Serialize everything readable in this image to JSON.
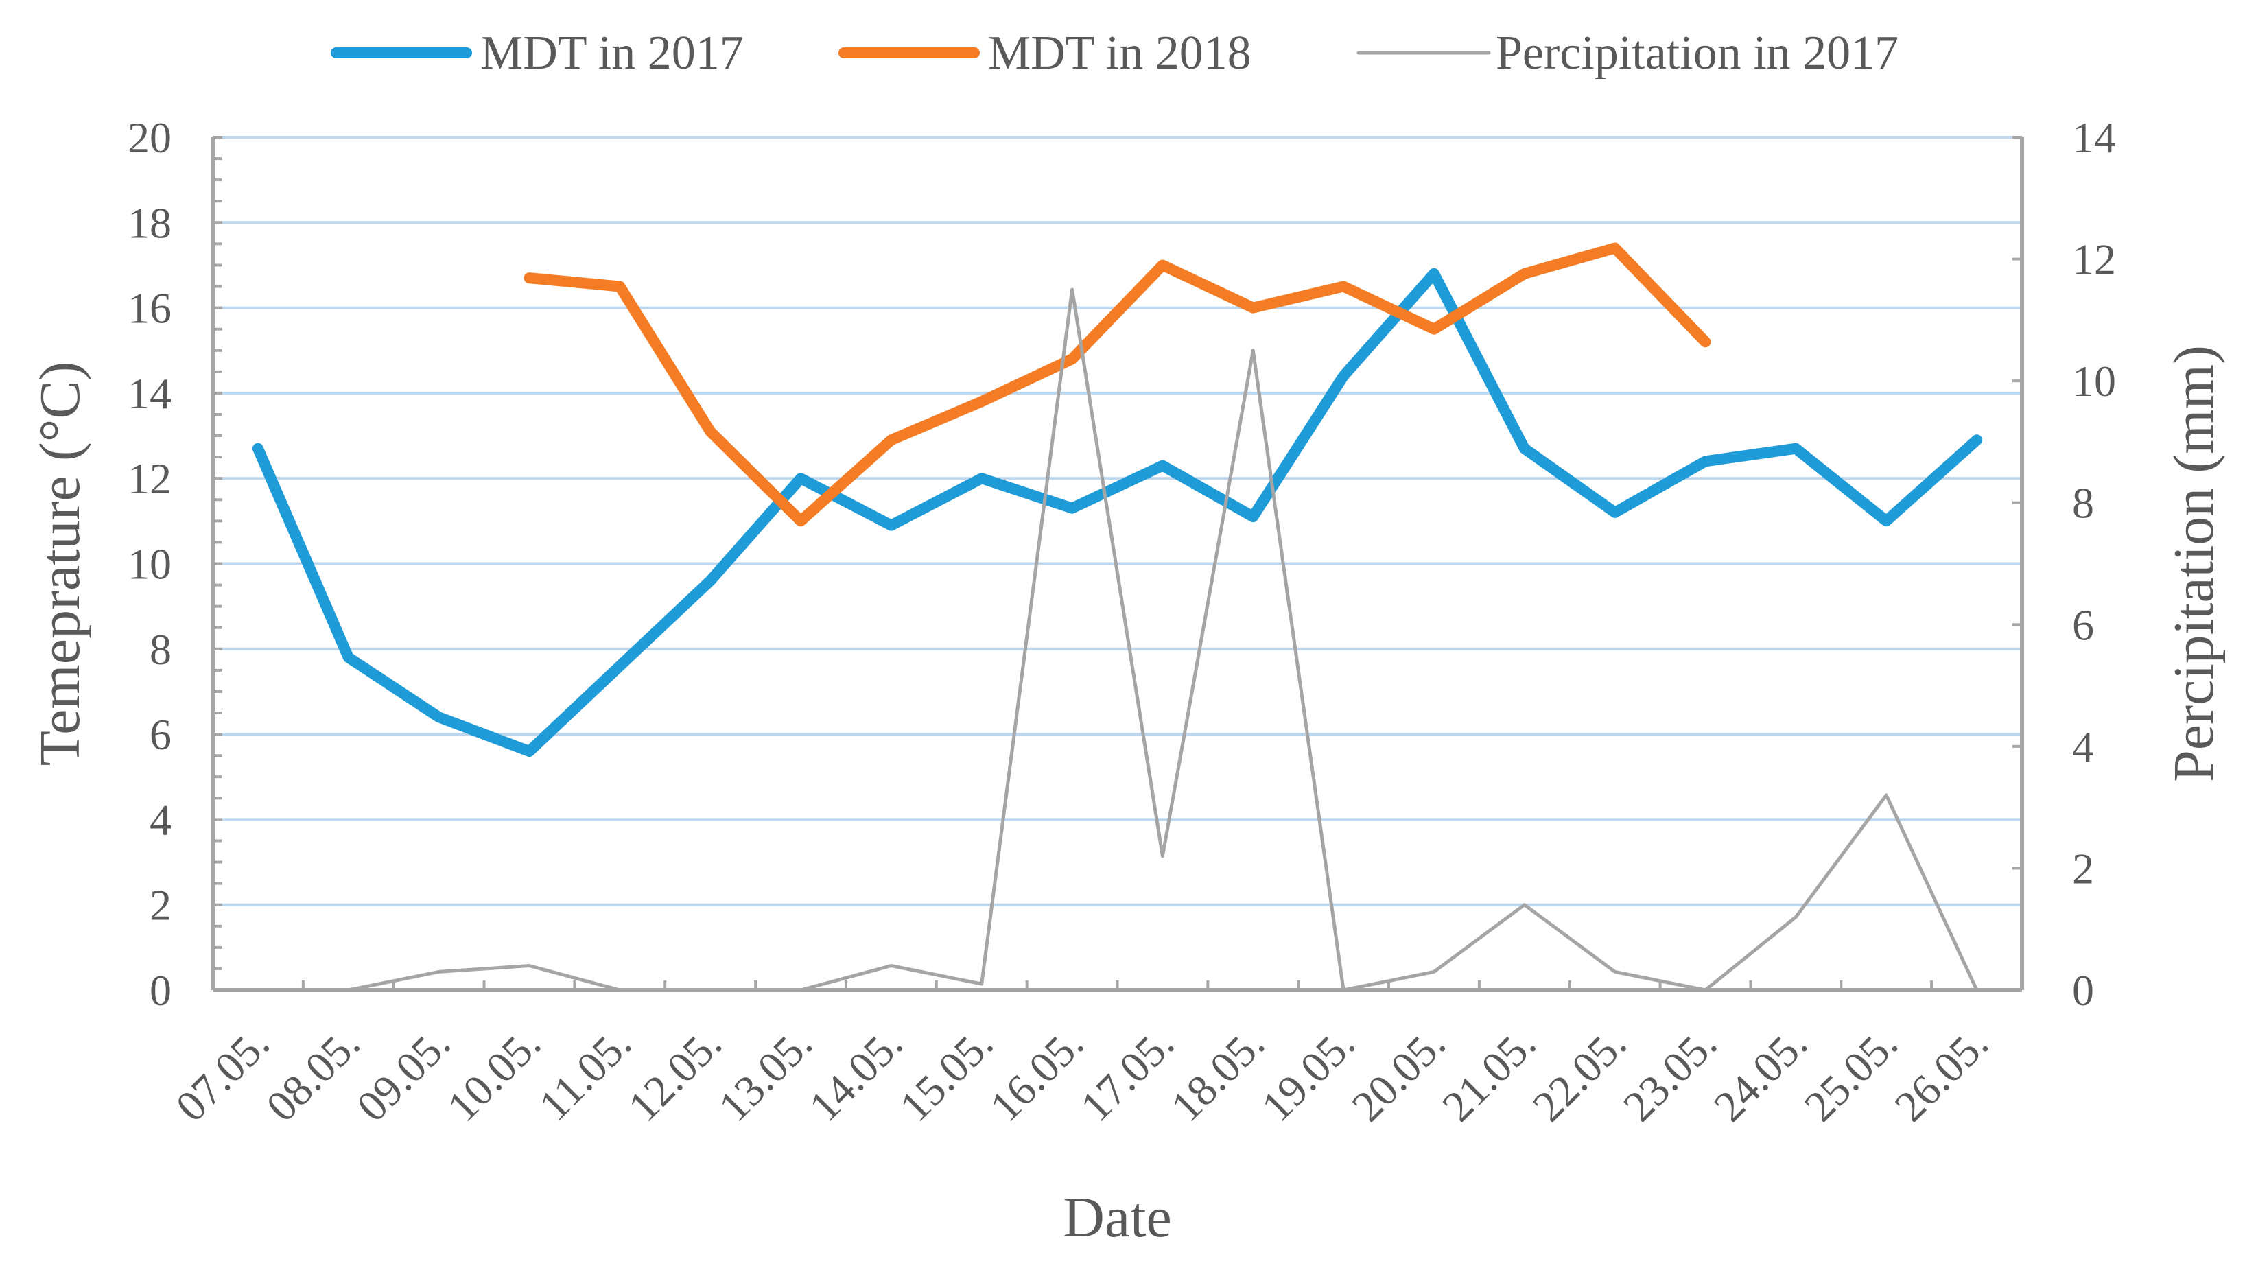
{
  "chart_data": {
    "type": "line",
    "title": "",
    "xlabel": "Date",
    "ylabel": "Temeprature (°C)",
    "y2label": "Percipitation (mm)",
    "categories": [
      "07.05.",
      "08.05.",
      "09.05.",
      "10.05.",
      "11.05.",
      "12.05.",
      "13.05.",
      "14.05.",
      "15.05.",
      "16.05.",
      "17.05.",
      "18.05.",
      "19.05.",
      "20.05.",
      "21.05.",
      "22.05.",
      "23.05.",
      "24.05.",
      "25.05.",
      "26.05."
    ],
    "ylim": [
      0,
      20
    ],
    "y_ticks": [
      "0",
      "2",
      "4",
      "6",
      "8",
      "10",
      "12",
      "14",
      "16",
      "18",
      "20"
    ],
    "y2lim": [
      0,
      14
    ],
    "y2_ticks": [
      "0",
      "2",
      "4",
      "6",
      "8",
      "10",
      "12",
      "14"
    ],
    "grid": true,
    "legend_position": "top",
    "series": [
      {
        "name": "MDT in 2017",
        "axis": "left",
        "color": "#1f9bd7",
        "values": [
          12.7,
          7.8,
          6.4,
          5.6,
          7.6,
          9.6,
          12.0,
          10.9,
          12.0,
          11.3,
          12.3,
          11.1,
          14.4,
          16.8,
          12.7,
          11.2,
          12.4,
          12.7,
          11.0,
          12.9
        ]
      },
      {
        "name": "MDT in 2018",
        "axis": "left",
        "color": "#f47c25",
        "values": [
          null,
          null,
          null,
          16.7,
          16.5,
          13.1,
          11.0,
          12.9,
          13.8,
          14.8,
          17.0,
          16.0,
          16.5,
          15.5,
          16.8,
          17.4,
          15.2,
          null,
          null,
          null
        ]
      },
      {
        "name": "Percipitation in 2017",
        "axis": "right",
        "color": "#a5a5a5",
        "values": [
          null,
          0.0,
          0.3,
          0.4,
          0.0,
          0.0,
          0.0,
          0.4,
          0.1,
          11.5,
          2.2,
          10.5,
          0.0,
          0.3,
          1.4,
          0.3,
          0.0,
          1.2,
          3.2,
          0.0
        ]
      }
    ]
  }
}
